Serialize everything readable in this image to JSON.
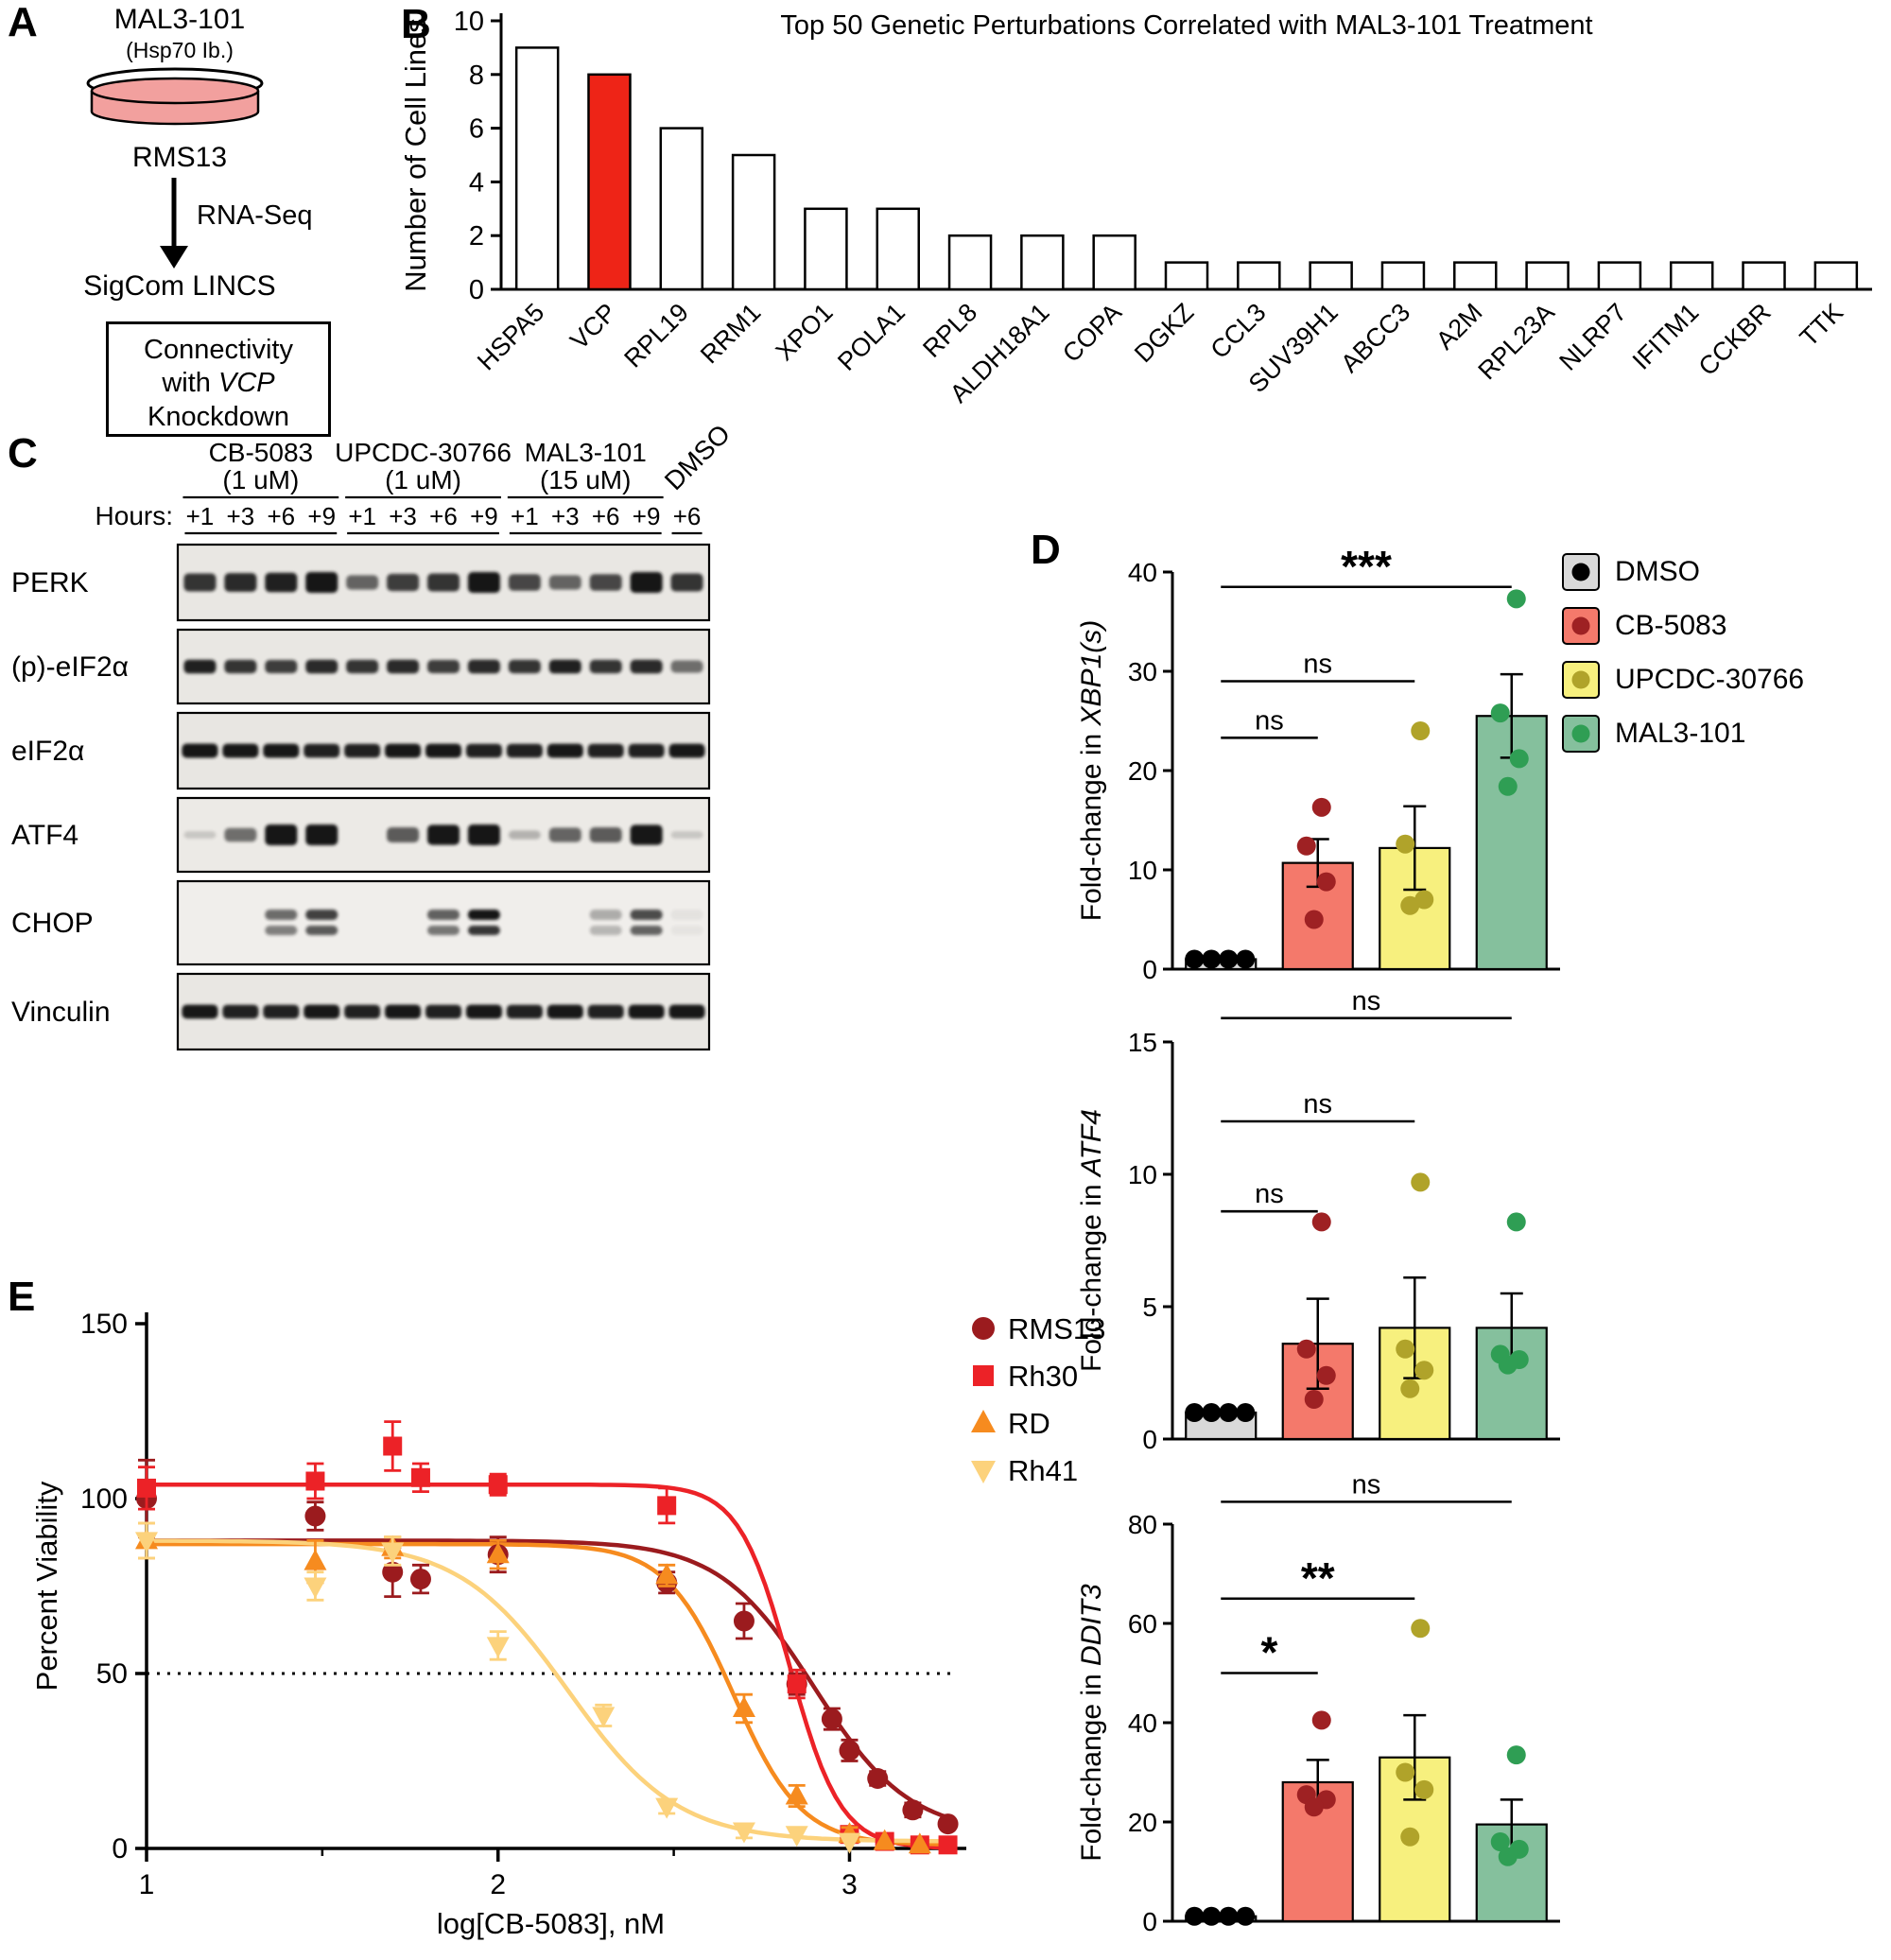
{
  "panels": {
    "a": "A",
    "b": "B",
    "c": "C",
    "d": "D",
    "e": "E"
  },
  "panelA": {
    "compound": "MAL3-101",
    "compound_sub": "(Hsp70 Ib.)",
    "cell_line": "RMS13",
    "arrow_label": "RNA-Seq",
    "database": "SigCom LINCS",
    "box_line1": "Connectivity",
    "box_line2_pre": "with ",
    "box_line2_gene": "VCP",
    "box_line3": "Knockdown",
    "dish_color": "#f2a09e"
  },
  "panelC": {
    "hours_label": "Hours:",
    "groups": [
      {
        "name": "CB-5083",
        "dose": "(1 uM)",
        "lanes": 4,
        "rotated": false
      },
      {
        "name": "UPCDC-30766",
        "dose": "(1 uM)",
        "lanes": 4,
        "rotated": false
      },
      {
        "name": "MAL3-101",
        "dose": "(15 uM)",
        "lanes": 4,
        "rotated": false
      },
      {
        "name": "DMSO",
        "dose": "",
        "lanes": 1,
        "rotated": true
      }
    ],
    "hours": [
      "+1",
      "+3",
      "+6",
      "+9",
      "+1",
      "+3",
      "+6",
      "+9",
      "+1",
      "+3",
      "+6",
      "+9",
      "+6"
    ],
    "rows": [
      {
        "protein": "PERK",
        "thick": true,
        "wide": false,
        "doublet": false,
        "bg": "#e9e7e3",
        "bands": [
          0.8,
          0.85,
          0.9,
          1.0,
          0.55,
          0.75,
          0.8,
          1.0,
          0.7,
          0.55,
          0.7,
          1.0,
          0.8
        ]
      },
      {
        "protein": "(p)-eIF2α",
        "thick": false,
        "wide": false,
        "doublet": false,
        "bg": "#e9e7e3",
        "bands": [
          0.9,
          0.8,
          0.75,
          0.85,
          0.8,
          0.85,
          0.75,
          0.85,
          0.8,
          0.9,
          0.8,
          0.85,
          0.5
        ]
      },
      {
        "protein": "eIF2α",
        "thick": false,
        "wide": true,
        "doublet": false,
        "bg": "#e8e6e2",
        "bands": [
          1.0,
          0.95,
          0.95,
          0.9,
          0.9,
          0.95,
          0.95,
          0.9,
          0.9,
          0.95,
          0.9,
          0.9,
          0.95
        ]
      },
      {
        "protein": "ATF4",
        "thick": true,
        "wide": false,
        "doublet": false,
        "bg": "#eceae6",
        "bands": [
          0.05,
          0.5,
          1.0,
          1.0,
          0,
          0.6,
          0.95,
          1.0,
          0.15,
          0.55,
          0.6,
          0.95,
          0.05
        ]
      },
      {
        "protein": "CHOP",
        "thick": false,
        "wide": false,
        "doublet": true,
        "bg": "#f0eeeb",
        "bands": [
          0,
          0,
          0.6,
          0.8,
          0,
          0,
          0.65,
          1.0,
          0,
          0,
          0.3,
          0.75,
          0.05
        ]
      },
      {
        "protein": "Vinculin",
        "thick": false,
        "wide": true,
        "doublet": false,
        "bg": "#e9e7e3",
        "bands": [
          0.95,
          0.9,
          0.9,
          0.95,
          0.9,
          0.95,
          0.9,
          0.95,
          0.9,
          0.95,
          0.9,
          0.95,
          0.95
        ]
      }
    ]
  },
  "palette": {
    "bar_fills": [
      "#d9d9d9",
      "#f4796b",
      "#f7f07e",
      "#85c09d"
    ],
    "dot_colors": [
      "#000000",
      "#9e2123",
      "#b0a32a",
      "#2f9e54"
    ]
  },
  "panelD_legend": [
    {
      "label": "DMSO",
      "fill": "#d9d9d9",
      "dot": "#000000"
    },
    {
      "label": "CB-5083",
      "fill": "#f4796b",
      "dot": "#9e2123"
    },
    {
      "label": "UPCDC-30766",
      "fill": "#f7f07e",
      "dot": "#b0a32a"
    },
    {
      "label": "MAL3-101",
      "fill": "#85c09d",
      "dot": "#2f9e54"
    }
  ],
  "chart_data": [
    {
      "id": "panelB",
      "type": "bar",
      "title": "Top 50 Genetic Perturbations Correlated with MAL3-101 Treatment",
      "ylabel": "Number of Cell Lines",
      "ylim": [
        0,
        10
      ],
      "yticks": [
        0,
        2,
        4,
        6,
        8,
        10
      ],
      "categories": [
        "HSPA5",
        "VCP",
        "RPL19",
        "RRM1",
        "XPO1",
        "POLA1",
        "RPL8",
        "ALDH18A1",
        "COPA",
        "DGKZ",
        "CCL3",
        "SUV39H1",
        "ABCC3",
        "A2M",
        "RPL23A",
        "NLRP7",
        "IFITM1",
        "CCKBR",
        "TTK"
      ],
      "values": [
        9,
        8,
        6,
        5,
        3,
        3,
        2,
        2,
        2,
        1,
        1,
        1,
        1,
        1,
        1,
        1,
        1,
        1,
        1
      ],
      "bar_fill": "#ffffff",
      "highlight_index": 1,
      "highlight_color": "#ee2417"
    },
    {
      "id": "panelD1",
      "type": "bar+scatter",
      "ylabel_prefix": "Fold-change in ",
      "ylabel_gene": "XBP1(s)",
      "ylim": [
        0,
        40
      ],
      "yticks": [
        0,
        10,
        20,
        30,
        40
      ],
      "groups": [
        "DMSO",
        "CB-5083",
        "UPCDC-30766",
        "MAL3-101"
      ],
      "bar_means": [
        1,
        10.7,
        12.2,
        25.5
      ],
      "errors": [
        0.2,
        2.4,
        4.2,
        4.2
      ],
      "points": [
        [
          1,
          1,
          1,
          1
        ],
        [
          16.3,
          12.4,
          8.8,
          5.0
        ],
        [
          24.0,
          12.6,
          7.0,
          6.4
        ],
        [
          37.3,
          25.8,
          21.2,
          18.4
        ]
      ],
      "significance": [
        {
          "from": 0,
          "to": 3,
          "label": "***",
          "y": 38.5
        },
        {
          "from": 0,
          "to": 2,
          "label": "ns",
          "y": 29
        },
        {
          "from": 0,
          "to": 1,
          "label": "ns",
          "y": 23.3
        }
      ]
    },
    {
      "id": "panelD2",
      "type": "bar+scatter",
      "ylabel_prefix": "Fold-change in ",
      "ylabel_gene": "ATF4",
      "ylim": [
        0,
        15
      ],
      "yticks": [
        0,
        5,
        10,
        15
      ],
      "groups": [
        "DMSO",
        "CB-5083",
        "UPCDC-30766",
        "MAL3-101"
      ],
      "bar_means": [
        1,
        3.6,
        4.2,
        4.2
      ],
      "errors": [
        0.1,
        1.7,
        1.9,
        1.3
      ],
      "points": [
        [
          1,
          1,
          1,
          1
        ],
        [
          8.2,
          3.4,
          2.4,
          1.5
        ],
        [
          9.7,
          3.4,
          2.6,
          1.9
        ],
        [
          8.2,
          3.2,
          3.0,
          2.8
        ]
      ],
      "significance": [
        {
          "from": 0,
          "to": 3,
          "label": "ns",
          "y": 15.9
        },
        {
          "from": 0,
          "to": 2,
          "label": "ns",
          "y": 12.0
        },
        {
          "from": 0,
          "to": 1,
          "label": "ns",
          "y": 8.6
        }
      ]
    },
    {
      "id": "panelD3",
      "type": "bar+scatter",
      "ylabel_prefix": "Fold-change in ",
      "ylabel_gene": "DDIT3",
      "ylim": [
        0,
        80
      ],
      "yticks": [
        0,
        20,
        40,
        60,
        80
      ],
      "groups": [
        "DMSO",
        "CB-5083",
        "UPCDC-30766",
        "MAL3-101"
      ],
      "bar_means": [
        1,
        28,
        33,
        19.5
      ],
      "errors": [
        0.2,
        4.5,
        8.5,
        5
      ],
      "points": [
        [
          1,
          1,
          1,
          1
        ],
        [
          40.5,
          25.5,
          24.5,
          23
        ],
        [
          59,
          30,
          26.5,
          17
        ],
        [
          33.5,
          16,
          14.5,
          13
        ]
      ],
      "significance": [
        {
          "from": 0,
          "to": 3,
          "label": "ns",
          "y": 84.5
        },
        {
          "from": 0,
          "to": 2,
          "label": "**",
          "y": 65
        },
        {
          "from": 0,
          "to": 1,
          "label": "*",
          "y": 50
        }
      ]
    },
    {
      "id": "panelE",
      "type": "line+scatter",
      "xlabel": "log[CB-5083], nM",
      "ylabel": "Percent Viability",
      "xlim": [
        1,
        3.3
      ],
      "ylim": [
        0,
        150
      ],
      "xticks": [
        1,
        2,
        3
      ],
      "yticks": [
        0,
        50,
        100,
        150
      ],
      "hline": 50,
      "series": [
        {
          "name": "RMS13",
          "color": "#9b1b1e",
          "marker": "circle",
          "curve": {
            "top": 88,
            "bottom": 4,
            "logIC50": 2.9,
            "hill": 3.2
          },
          "points": [
            [
              1,
              100,
              11
            ],
            [
              1.48,
              95,
              4
            ],
            [
              1.7,
              79,
              7
            ],
            [
              1.78,
              77,
              4
            ],
            [
              2.0,
              84,
              5
            ],
            [
              2.48,
              76,
              3
            ],
            [
              2.7,
              65,
              5
            ],
            [
              2.85,
              47,
              3
            ],
            [
              2.95,
              37,
              3
            ],
            [
              3.0,
              28,
              3
            ],
            [
              3.08,
              20,
              2
            ],
            [
              3.18,
              11,
              2
            ],
            [
              3.28,
              7,
              1
            ]
          ]
        },
        {
          "name": "Rh30",
          "color": "#ec2227",
          "marker": "square",
          "curve": {
            "top": 104,
            "bottom": 0,
            "logIC50": 2.83,
            "hill": 6
          },
          "points": [
            [
              1,
              103,
              6
            ],
            [
              1.48,
              105,
              5
            ],
            [
              1.7,
              115,
              7
            ],
            [
              1.78,
              106,
              4
            ],
            [
              2.0,
              104,
              3
            ],
            [
              2.48,
              98,
              5
            ],
            [
              2.85,
              47,
              4
            ],
            [
              3.0,
              4,
              2
            ],
            [
              3.1,
              2,
              1
            ],
            [
              3.2,
              1,
              1
            ],
            [
              3.28,
              1,
              1
            ]
          ]
        },
        {
          "name": "RD",
          "color": "#f68b1f",
          "marker": "triangle-up",
          "curve": {
            "top": 87,
            "bottom": 1,
            "logIC50": 2.67,
            "hill": 4.5
          },
          "points": [
            [
              1,
              88,
              5
            ],
            [
              1.48,
              82,
              6
            ],
            [
              1.7,
              86,
              3
            ],
            [
              2.0,
              84,
              4
            ],
            [
              2.48,
              78,
              3
            ],
            [
              2.7,
              40,
              4
            ],
            [
              2.85,
              15,
              3
            ],
            [
              3.0,
              4,
              2
            ],
            [
              3.1,
              2,
              1
            ],
            [
              3.2,
              1,
              1
            ]
          ]
        },
        {
          "name": "Rh41",
          "color": "#fcd27c",
          "marker": "triangle-down",
          "curve": {
            "top": 88,
            "bottom": 2,
            "logIC50": 2.2,
            "hill": 2.8
          },
          "points": [
            [
              1,
              88,
              5
            ],
            [
              1.48,
              75,
              4
            ],
            [
              1.7,
              85,
              4
            ],
            [
              2.0,
              58,
              4
            ],
            [
              2.3,
              38,
              3
            ],
            [
              2.48,
              12,
              2
            ],
            [
              2.7,
              5,
              2
            ],
            [
              2.85,
              4,
              1
            ],
            [
              3.0,
              2,
              1
            ]
          ]
        }
      ]
    }
  ]
}
